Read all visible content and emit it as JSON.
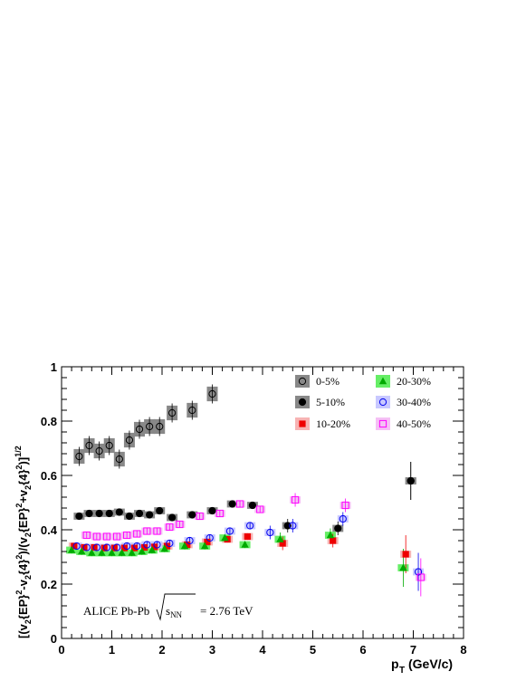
{
  "chart_data": {
    "type": "scatter",
    "xlabel": "p_T (GeV/c)",
    "ylabel": "[(v_2{EP}^2-v_2{4}^2)/(v_2{EP}^2+v_2{4}^2)]^{1/2}",
    "xlim": [
      0,
      8
    ],
    "ylim": [
      0,
      1
    ],
    "x_ticks": [
      "0",
      "1",
      "2",
      "3",
      "4",
      "5",
      "6",
      "7",
      "8"
    ],
    "y_ticks": [
      "0",
      "0.2",
      "0.4",
      "0.6",
      "0.8",
      "1"
    ],
    "annotation": "ALICE Pb-Pb",
    "annotation_energy": "= 2.76 TeV",
    "annotation_energy_symbol": "s_NN",
    "legend_position": "top-right",
    "series": [
      {
        "name": "0-5%",
        "marker": "open-circle",
        "color": "#000000",
        "box_color": "#888888",
        "x": [
          0.35,
          0.55,
          0.75,
          0.95,
          1.15,
          1.35,
          1.55,
          1.75,
          1.95,
          2.2,
          2.6,
          3.0,
          6.95
        ],
        "y": [
          0.67,
          0.71,
          0.69,
          0.71,
          0.66,
          0.73,
          0.77,
          0.78,
          0.78,
          0.83,
          0.84,
          0.9,
          0.58
        ]
      },
      {
        "name": "5-10%",
        "marker": "filled-circle",
        "color": "#000000",
        "box_color": "#888888",
        "x": [
          0.35,
          0.55,
          0.75,
          0.95,
          1.15,
          1.35,
          1.55,
          1.75,
          1.95,
          2.2,
          2.6,
          3.0,
          3.4,
          3.8,
          4.5,
          5.5,
          6.95
        ],
        "y": [
          0.45,
          0.46,
          0.46,
          0.46,
          0.465,
          0.45,
          0.46,
          0.455,
          0.47,
          0.445,
          0.455,
          0.47,
          0.495,
          0.49,
          0.415,
          0.405,
          0.58
        ]
      },
      {
        "name": "10-20%",
        "marker": "filled-square",
        "color": "#ee0000",
        "box_color": "#f7b3b3",
        "x": [
          0.25,
          0.45,
          0.65,
          0.85,
          1.05,
          1.25,
          1.45,
          1.65,
          1.85,
          2.1,
          2.5,
          2.9,
          3.3,
          3.7,
          4.4,
          5.4,
          6.85
        ],
        "y": [
          0.34,
          0.335,
          0.335,
          0.333,
          0.333,
          0.333,
          0.333,
          0.335,
          0.337,
          0.34,
          0.345,
          0.355,
          0.365,
          0.375,
          0.35,
          0.36,
          0.31
        ]
      },
      {
        "name": "20-30%",
        "marker": "filled-triangle",
        "color": "#00aa00",
        "box_color": "#66ee66",
        "x": [
          0.2,
          0.4,
          0.6,
          0.8,
          1.0,
          1.2,
          1.4,
          1.6,
          1.8,
          2.05,
          2.45,
          2.85,
          3.25,
          3.65,
          4.35,
          5.35,
          6.8
        ],
        "y": [
          0.325,
          0.32,
          0.315,
          0.315,
          0.315,
          0.315,
          0.315,
          0.32,
          0.325,
          0.33,
          0.34,
          0.34,
          0.37,
          0.345,
          0.365,
          0.38,
          0.26
        ]
      },
      {
        "name": "30-40%",
        "marker": "open-circle",
        "color": "#0000ee",
        "box_color": "#c8c8ff",
        "x": [
          0.3,
          0.5,
          0.7,
          0.9,
          1.1,
          1.3,
          1.5,
          1.7,
          1.9,
          2.15,
          2.55,
          2.95,
          3.35,
          3.75,
          4.15,
          4.6,
          5.6,
          7.1
        ],
        "y": [
          0.34,
          0.335,
          0.335,
          0.335,
          0.335,
          0.34,
          0.34,
          0.345,
          0.345,
          0.35,
          0.36,
          0.37,
          0.395,
          0.415,
          0.39,
          0.415,
          0.44,
          0.245
        ]
      },
      {
        "name": "40-50%",
        "marker": "open-square",
        "color": "#ff00ff",
        "box_color": "#f5c0f5",
        "x": [
          0.5,
          0.7,
          0.9,
          1.1,
          1.3,
          1.5,
          1.7,
          1.9,
          2.15,
          2.35,
          2.75,
          3.15,
          3.55,
          3.95,
          4.65,
          5.65,
          7.15
        ],
        "y": [
          0.38,
          0.375,
          0.375,
          0.375,
          0.38,
          0.385,
          0.395,
          0.395,
          0.41,
          0.42,
          0.45,
          0.46,
          0.495,
          0.475,
          0.51,
          0.49,
          0.225
        ]
      }
    ]
  }
}
